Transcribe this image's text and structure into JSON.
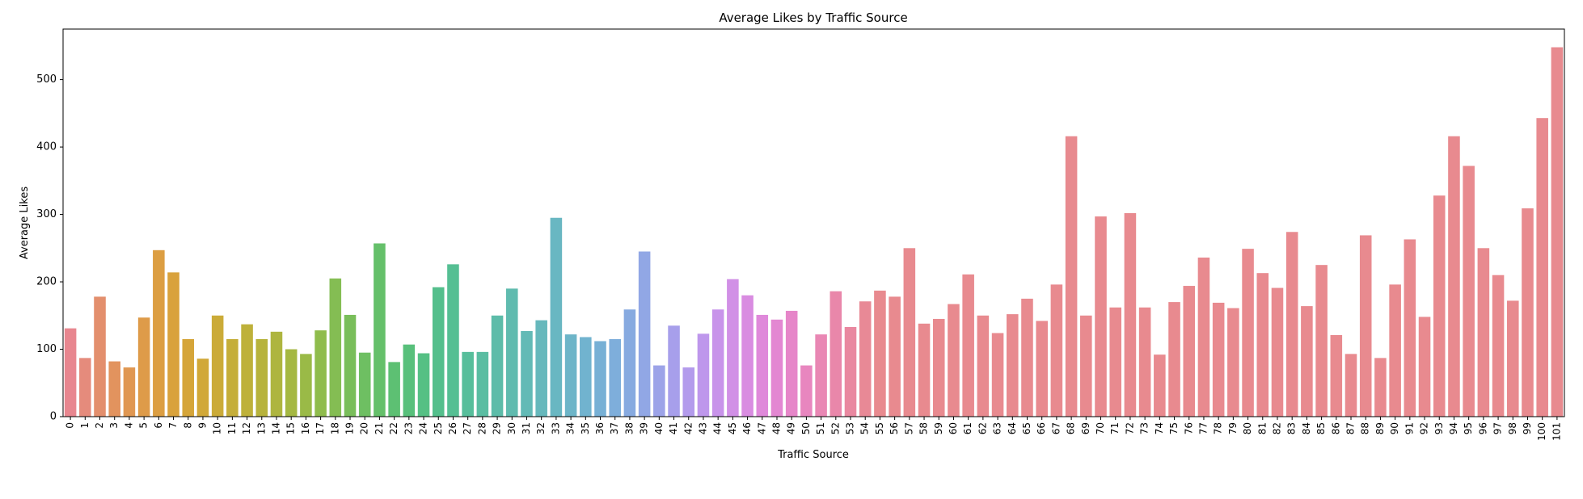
{
  "chart_data": {
    "type": "bar",
    "title": "Average Likes by Traffic Source",
    "xlabel": "Traffic Source",
    "ylabel": "Average Likes",
    "ylim": [
      0,
      575
    ],
    "yticks": [
      0,
      100,
      200,
      300,
      400,
      500
    ],
    "grid": false,
    "legend": "none",
    "categories": [
      "0",
      "1",
      "2",
      "3",
      "4",
      "5",
      "6",
      "7",
      "8",
      "9",
      "10",
      "11",
      "12",
      "13",
      "14",
      "15",
      "16",
      "17",
      "18",
      "19",
      "20",
      "21",
      "22",
      "23",
      "24",
      "25",
      "26",
      "27",
      "28",
      "29",
      "30",
      "31",
      "32",
      "33",
      "34",
      "35",
      "36",
      "37",
      "38",
      "39",
      "40",
      "41",
      "42",
      "43",
      "44",
      "45",
      "46",
      "47",
      "48",
      "49",
      "50",
      "51",
      "52",
      "53",
      "54",
      "55",
      "56",
      "57",
      "58",
      "59",
      "60",
      "61",
      "62",
      "63",
      "64",
      "65",
      "66",
      "67",
      "68",
      "69",
      "70",
      "71",
      "72",
      "73",
      "74",
      "75",
      "76",
      "77",
      "78",
      "79",
      "80",
      "81",
      "82",
      "83",
      "84",
      "85",
      "86",
      "87",
      "88",
      "89",
      "90",
      "91",
      "92",
      "93",
      "94",
      "95",
      "96",
      "97",
      "98",
      "99",
      "100",
      "101"
    ],
    "values": [
      131,
      87,
      178,
      82,
      73,
      147,
      247,
      214,
      115,
      86,
      150,
      115,
      137,
      115,
      126,
      100,
      93,
      128,
      205,
      151,
      95,
      257,
      81,
      107,
      94,
      192,
      226,
      96,
      96,
      150,
      190,
      127,
      143,
      295,
      122,
      118,
      112,
      115,
      159,
      245,
      76,
      135,
      73,
      123,
      159,
      204,
      180,
      151,
      144,
      157,
      76,
      122,
      186,
      133,
      171,
      187,
      178,
      250,
      138,
      145,
      167,
      211,
      150,
      124,
      152,
      175,
      142,
      196,
      416,
      150,
      297,
      162,
      302,
      162,
      92,
      170,
      194,
      236,
      169,
      161,
      249,
      213,
      191,
      274,
      164,
      225,
      121,
      93,
      269,
      87,
      196,
      263,
      148,
      328,
      416,
      372,
      250,
      210,
      172,
      309,
      443,
      548
    ],
    "colors": [
      "#e8868f",
      "#e58b7c",
      "#e38f6d",
      "#e2935e",
      "#e09752",
      "#de9b49",
      "#dc9e42",
      "#d9a23c",
      "#d5a539",
      "#d1a838",
      "#cbab38",
      "#c5ae39",
      "#beb13a",
      "#b7b33c",
      "#aeb53f",
      "#a5b842",
      "#9aba47",
      "#8fbc4c",
      "#84bd53",
      "#79be5a",
      "#6ebf62",
      "#65c06a",
      "#5dc073",
      "#58c07b",
      "#55c084",
      "#54bf8c",
      "#55bf93",
      "#57be9b",
      "#5abda2",
      "#5dbca9",
      "#60bbaf",
      "#63bab6",
      "#66b8bc",
      "#69b7c2",
      "#6db5c8",
      "#71b3cf",
      "#77b0d5",
      "#7eaedb",
      "#87aae0",
      "#91a7e5",
      "#9ca3e8",
      "#a79feb",
      "#b39bec",
      "#be97ec",
      "#c893ea",
      "#d190e6",
      "#d98ce1",
      "#df89da",
      "#e387d2",
      "#e686c9",
      "#e886bf",
      "#e987b4",
      "#e987aa",
      "#e988a0",
      "#e88996",
      "#e88a8f",
      "#e88a8f",
      "#e88a8f",
      "#e88a8f",
      "#e88a8f",
      "#e88a8f",
      "#e88a8f",
      "#e88a8f",
      "#e88a8f",
      "#e88a8f",
      "#e88a8f",
      "#e88a8f",
      "#e88a8f",
      "#e88a8f",
      "#e88a8f",
      "#e88a8f",
      "#e88a8f",
      "#e88a8f",
      "#e88a8f",
      "#e88a8f",
      "#e88a8f",
      "#e88a8f",
      "#e88a8f",
      "#e88a8f",
      "#e88a8f",
      "#e88a8f",
      "#e88a8f",
      "#e88a8f",
      "#e88a8f",
      "#e88a8f",
      "#e88a8f",
      "#e88a8f",
      "#e88a8f",
      "#e88a8f",
      "#e88a8f",
      "#e88a8f",
      "#e88a8f",
      "#e88a8f",
      "#e88a8f",
      "#e88a8f",
      "#e88a8f",
      "#e88a8f",
      "#e88a8f",
      "#e88a8f",
      "#e88a8f",
      "#e88a8f",
      "#e88a8f"
    ]
  }
}
